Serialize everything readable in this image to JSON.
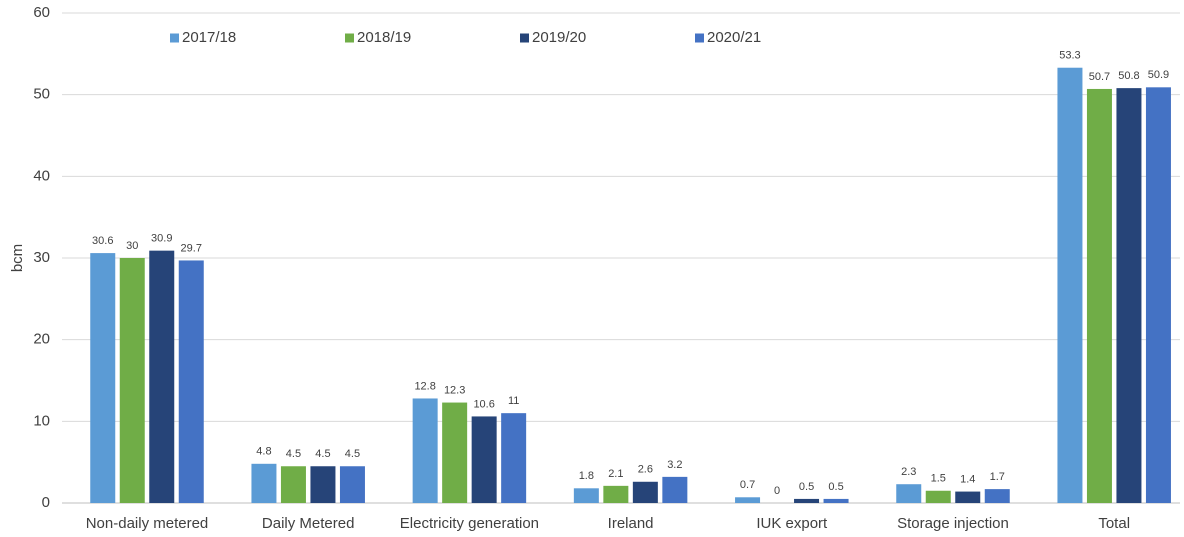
{
  "chart_data": {
    "type": "bar",
    "y_label": "bcm",
    "categories": [
      "Non-daily metered",
      "Daily Metered",
      "Electricity generation",
      "Ireland",
      "IUK export",
      "Storage injection",
      "Total"
    ],
    "series": [
      {
        "name": "2017/18",
        "color": "#5b9bd5",
        "values": [
          30.6,
          4.8,
          12.8,
          1.8,
          0.7,
          2.3,
          53.3
        ]
      },
      {
        "name": "2018/19",
        "color": "#70ad47",
        "values": [
          30,
          4.5,
          12.3,
          2.1,
          0,
          1.5,
          50.7
        ]
      },
      {
        "name": "2019/20",
        "color": "#264478",
        "values": [
          30.9,
          4.5,
          10.6,
          2.6,
          0.5,
          1.4,
          50.8
        ]
      },
      {
        "name": "2020/21",
        "color": "#4472c4",
        "values": [
          29.7,
          4.5,
          11,
          3.2,
          0.5,
          1.7,
          50.9
        ]
      }
    ],
    "ylim": [
      0,
      60
    ],
    "yticks": [
      0,
      10,
      20,
      30,
      40,
      50,
      60
    ],
    "grid": true,
    "legend": "top"
  }
}
